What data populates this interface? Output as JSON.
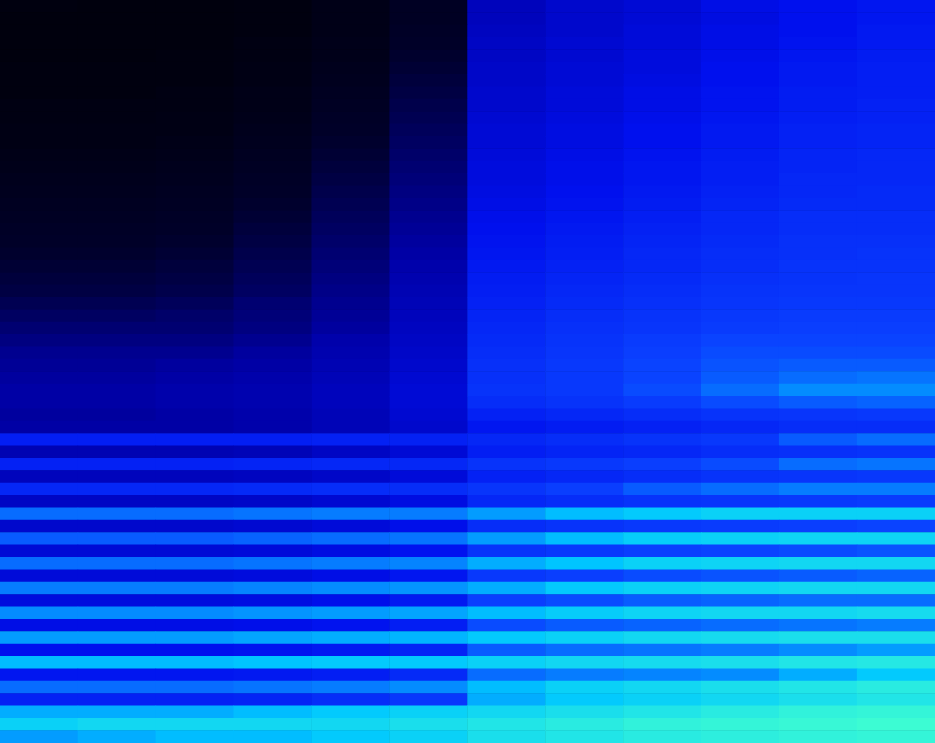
{
  "chart_data": {
    "type": "heatmap",
    "tick_labels": false,
    "zlim": [
      0,
      100
    ],
    "cells": [
      [
        6,
        5,
        5,
        6,
        9,
        14,
        38,
        42,
        44,
        48,
        50,
        52
      ],
      [
        5,
        5,
        5,
        6,
        9,
        14,
        38,
        42,
        44,
        47,
        50,
        52
      ],
      [
        5,
        5,
        5,
        6,
        9,
        15,
        39,
        42,
        45,
        48,
        50,
        53
      ],
      [
        5,
        5,
        5,
        7,
        10,
        16,
        40,
        43,
        45,
        48,
        51,
        53
      ],
      [
        5,
        5,
        6,
        7,
        10,
        17,
        40,
        43,
        46,
        49,
        52,
        54
      ],
      [
        6,
        6,
        6,
        8,
        11,
        18,
        41,
        44,
        46,
        50,
        53,
        55
      ],
      [
        6,
        6,
        6,
        8,
        12,
        19,
        41,
        44,
        47,
        50,
        53,
        55
      ],
      [
        6,
        6,
        7,
        9,
        13,
        20,
        42,
        45,
        48,
        51,
        54,
        55
      ],
      [
        7,
        7,
        7,
        9,
        14,
        21,
        42,
        45,
        48,
        51,
        54,
        56
      ],
      [
        7,
        7,
        8,
        10,
        15,
        22,
        43,
        46,
        49,
        52,
        55,
        56
      ],
      [
        8,
        8,
        8,
        11,
        16,
        23,
        44,
        47,
        50,
        53,
        56,
        57
      ],
      [
        8,
        8,
        9,
        12,
        17,
        24,
        44,
        47,
        50,
        53,
        56,
        57
      ],
      [
        9,
        9,
        10,
        13,
        18,
        25,
        45,
        48,
        51,
        54,
        57,
        58
      ],
      [
        10,
        10,
        11,
        14,
        19,
        26,
        46,
        49,
        52,
        55,
        57,
        58
      ],
      [
        11,
        11,
        12,
        15,
        20,
        27,
        46,
        49,
        52,
        55,
        58,
        58
      ],
      [
        12,
        12,
        13,
        16,
        21,
        28,
        47,
        50,
        53,
        56,
        58,
        59
      ],
      [
        13,
        13,
        14,
        17,
        22,
        29,
        48,
        51,
        54,
        57,
        59,
        59
      ],
      [
        14,
        14,
        15,
        18,
        23,
        30,
        49,
        52,
        55,
        58,
        60,
        60
      ],
      [
        15,
        15,
        16,
        19,
        24,
        31,
        50,
        53,
        56,
        58,
        60,
        60
      ],
      [
        16,
        16,
        17,
        20,
        25,
        32,
        51,
        54,
        57,
        59,
        61,
        61
      ],
      [
        17,
        17,
        18,
        21,
        26,
        33,
        52,
        55,
        58,
        60,
        61,
        62
      ],
      [
        18,
        18,
        19,
        22,
        27,
        34,
        53,
        56,
        58,
        60,
        62,
        62
      ],
      [
        19,
        19,
        20,
        23,
        28,
        35,
        54,
        57,
        59,
        61,
        62,
        63
      ],
      [
        20,
        20,
        21,
        24,
        29,
        36,
        55,
        58,
        60,
        62,
        63,
        63
      ],
      [
        22,
        22,
        23,
        26,
        30,
        37,
        56,
        59,
        61,
        63,
        64,
        64
      ],
      [
        24,
        24,
        25,
        27,
        31,
        38,
        57,
        60,
        62,
        64,
        65,
        65
      ],
      [
        26,
        26,
        26,
        28,
        32,
        39,
        58,
        61,
        63,
        65,
        66,
        66
      ],
      [
        28,
        28,
        28,
        30,
        34,
        40,
        59,
        62,
        65,
        67,
        67,
        67
      ],
      [
        30,
        30,
        30,
        32,
        35,
        41,
        60,
        63,
        66,
        68,
        68,
        68
      ],
      [
        31,
        31,
        32,
        33,
        36,
        42,
        61,
        64,
        67,
        69,
        70,
        70
      ],
      [
        32,
        32,
        33,
        34,
        37,
        43,
        61,
        64,
        67,
        70,
        72,
        73
      ],
      [
        33,
        33,
        34,
        35,
        38,
        44,
        62,
        64,
        68,
        72,
        76,
        76
      ],
      [
        33,
        33,
        34,
        35,
        38,
        44,
        60,
        62,
        65,
        68,
        70,
        71
      ],
      [
        32,
        32,
        33,
        34,
        37,
        43,
        56,
        58,
        60,
        62,
        63,
        64
      ],
      [
        33,
        33,
        33,
        34,
        37,
        42,
        52,
        54,
        56,
        58,
        60,
        60
      ],
      [
        55,
        55,
        55,
        55,
        56,
        56,
        58,
        60,
        62,
        64,
        70,
        72
      ],
      [
        36,
        36,
        36,
        37,
        40,
        44,
        55,
        57,
        58,
        60,
        61,
        62
      ],
      [
        56,
        56,
        56,
        57,
        58,
        58,
        62,
        64,
        66,
        68,
        72,
        73
      ],
      [
        38,
        38,
        38,
        39,
        41,
        45,
        56,
        58,
        60,
        62,
        63,
        64
      ],
      [
        58,
        58,
        58,
        59,
        60,
        60,
        63,
        66,
        70,
        72,
        74,
        74
      ],
      [
        40,
        40,
        40,
        41,
        43,
        47,
        58,
        60,
        62,
        63,
        64,
        65
      ],
      [
        72,
        72,
        72,
        73,
        74,
        74,
        78,
        82,
        84,
        86,
        86,
        86
      ],
      [
        42,
        42,
        42,
        43,
        45,
        49,
        60,
        62,
        64,
        65,
        66,
        67
      ],
      [
        70,
        70,
        70,
        71,
        72,
        73,
        78,
        82,
        85,
        86,
        87,
        87
      ],
      [
        44,
        44,
        44,
        45,
        47,
        51,
        62,
        64,
        66,
        67,
        68,
        69
      ],
      [
        72,
        72,
        72,
        73,
        74,
        75,
        80,
        83,
        86,
        87,
        88,
        88
      ],
      [
        45,
        45,
        45,
        46,
        48,
        52,
        64,
        66,
        68,
        69,
        70,
        71
      ],
      [
        74,
        74,
        74,
        75,
        76,
        77,
        80,
        84,
        86,
        87,
        88,
        88
      ],
      [
        46,
        46,
        46,
        47,
        49,
        53,
        66,
        68,
        70,
        71,
        72,
        72
      ],
      [
        76,
        76,
        76,
        77,
        78,
        79,
        82,
        85,
        87,
        88,
        88,
        89
      ],
      [
        48,
        48,
        48,
        49,
        51,
        55,
        68,
        70,
        71,
        72,
        73,
        74
      ],
      [
        78,
        78,
        78,
        79,
        80,
        81,
        84,
        86,
        88,
        89,
        90,
        90
      ],
      [
        50,
        50,
        50,
        51,
        53,
        57,
        70,
        72,
        73,
        74,
        76,
        78
      ],
      [
        82,
        82,
        82,
        83,
        84,
        84,
        86,
        88,
        89,
        90,
        92,
        93
      ],
      [
        52,
        52,
        52,
        53,
        55,
        59,
        72,
        74,
        75,
        76,
        80,
        84
      ],
      [
        72,
        72,
        72,
        73,
        74,
        76,
        82,
        86,
        88,
        90,
        92,
        94
      ],
      [
        56,
        56,
        56,
        57,
        60,
        64,
        80,
        84,
        86,
        88,
        90,
        92
      ],
      [
        80,
        80,
        80,
        82,
        84,
        86,
        88,
        90,
        92,
        94,
        96,
        97
      ],
      [
        86,
        88,
        88,
        88,
        88,
        90,
        92,
        94,
        96,
        97,
        98,
        99
      ],
      [
        78,
        80,
        82,
        82,
        84,
        86,
        90,
        92,
        94,
        95,
        96,
        97
      ]
    ]
  }
}
